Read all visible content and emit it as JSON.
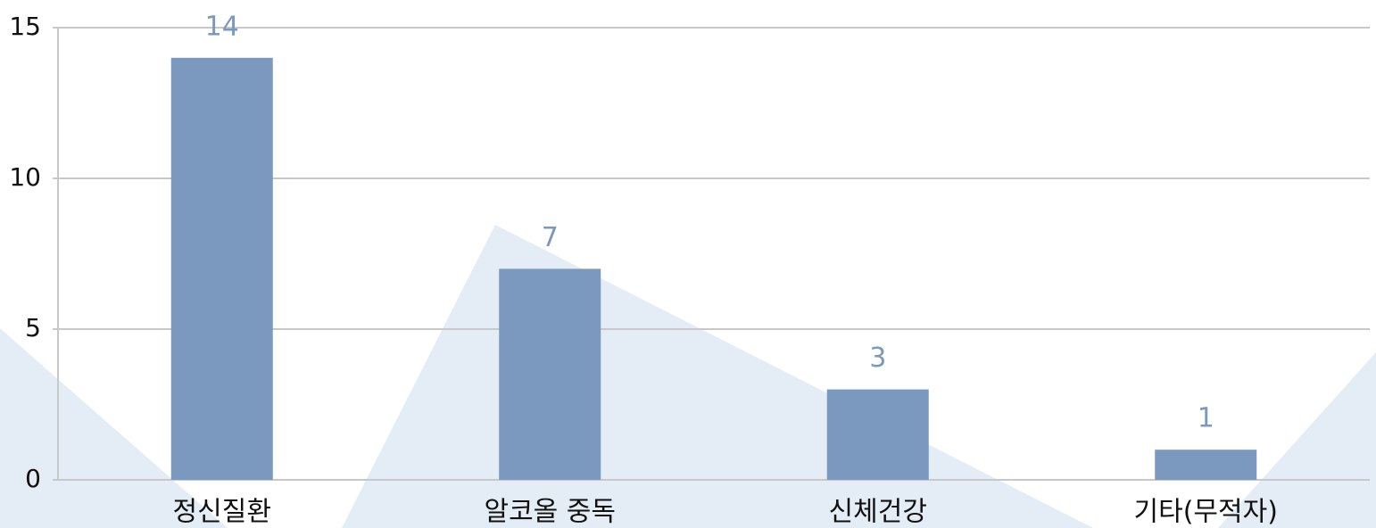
{
  "chart_data": {
    "type": "bar",
    "categories": [
      "정신질환",
      "알코올 중독",
      "신체건강",
      "기타(무적자)"
    ],
    "values": [
      14,
      7,
      3,
      1
    ],
    "color": "#7b98bf",
    "ylim": [
      0,
      15
    ],
    "yticks": [
      0,
      5,
      10,
      15
    ],
    "grid": true
  }
}
